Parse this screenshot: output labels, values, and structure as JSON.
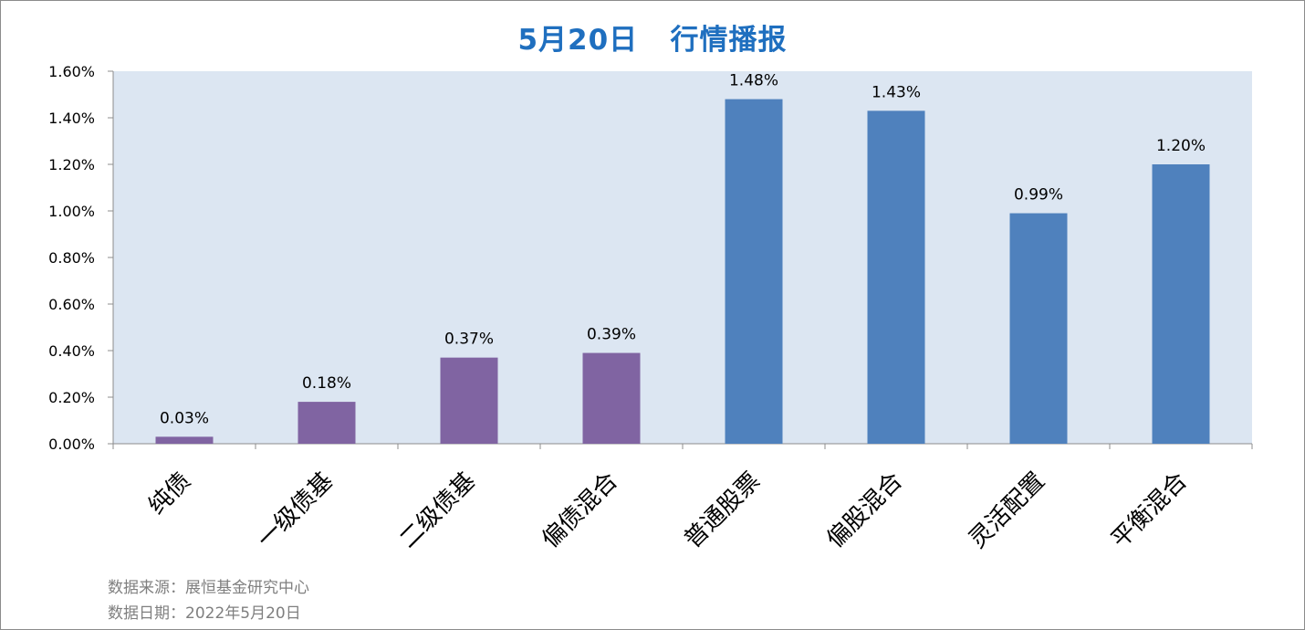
{
  "chart_data": {
    "type": "bar",
    "title": "5月20日   行情播报",
    "categories": [
      "纯债",
      "一级债基",
      "二级债基",
      "偏债混合",
      "普通股票",
      "偏股混合",
      "灵活配置",
      "平衡混合"
    ],
    "values": [
      0.03,
      0.18,
      0.37,
      0.39,
      1.48,
      1.43,
      0.99,
      1.2
    ],
    "data_labels": [
      "0.03%",
      "0.18%",
      "0.37%",
      "0.39%",
      "1.48%",
      "1.43%",
      "0.99%",
      "1.20%"
    ],
    "bar_colors": [
      "#8064a2",
      "#8064a2",
      "#8064a2",
      "#8064a2",
      "#4f81bd",
      "#4f81bd",
      "#4f81bd",
      "#4f81bd"
    ],
    "ylim": [
      0,
      1.6
    ],
    "yticks": [
      "0.00%",
      "0.20%",
      "0.40%",
      "0.60%",
      "0.80%",
      "1.00%",
      "1.20%",
      "1.40%",
      "1.60%"
    ],
    "unit": "%",
    "grid": false,
    "xlabel": "",
    "ylabel": ""
  },
  "colors": {
    "title": "#1f6fbf",
    "plot_background": "#dce6f2",
    "footnote": "#7f7f7f"
  },
  "footnotes": {
    "source": "数据来源：展恒基金研究中心",
    "date": "数据日期：2022年5月20日"
  }
}
